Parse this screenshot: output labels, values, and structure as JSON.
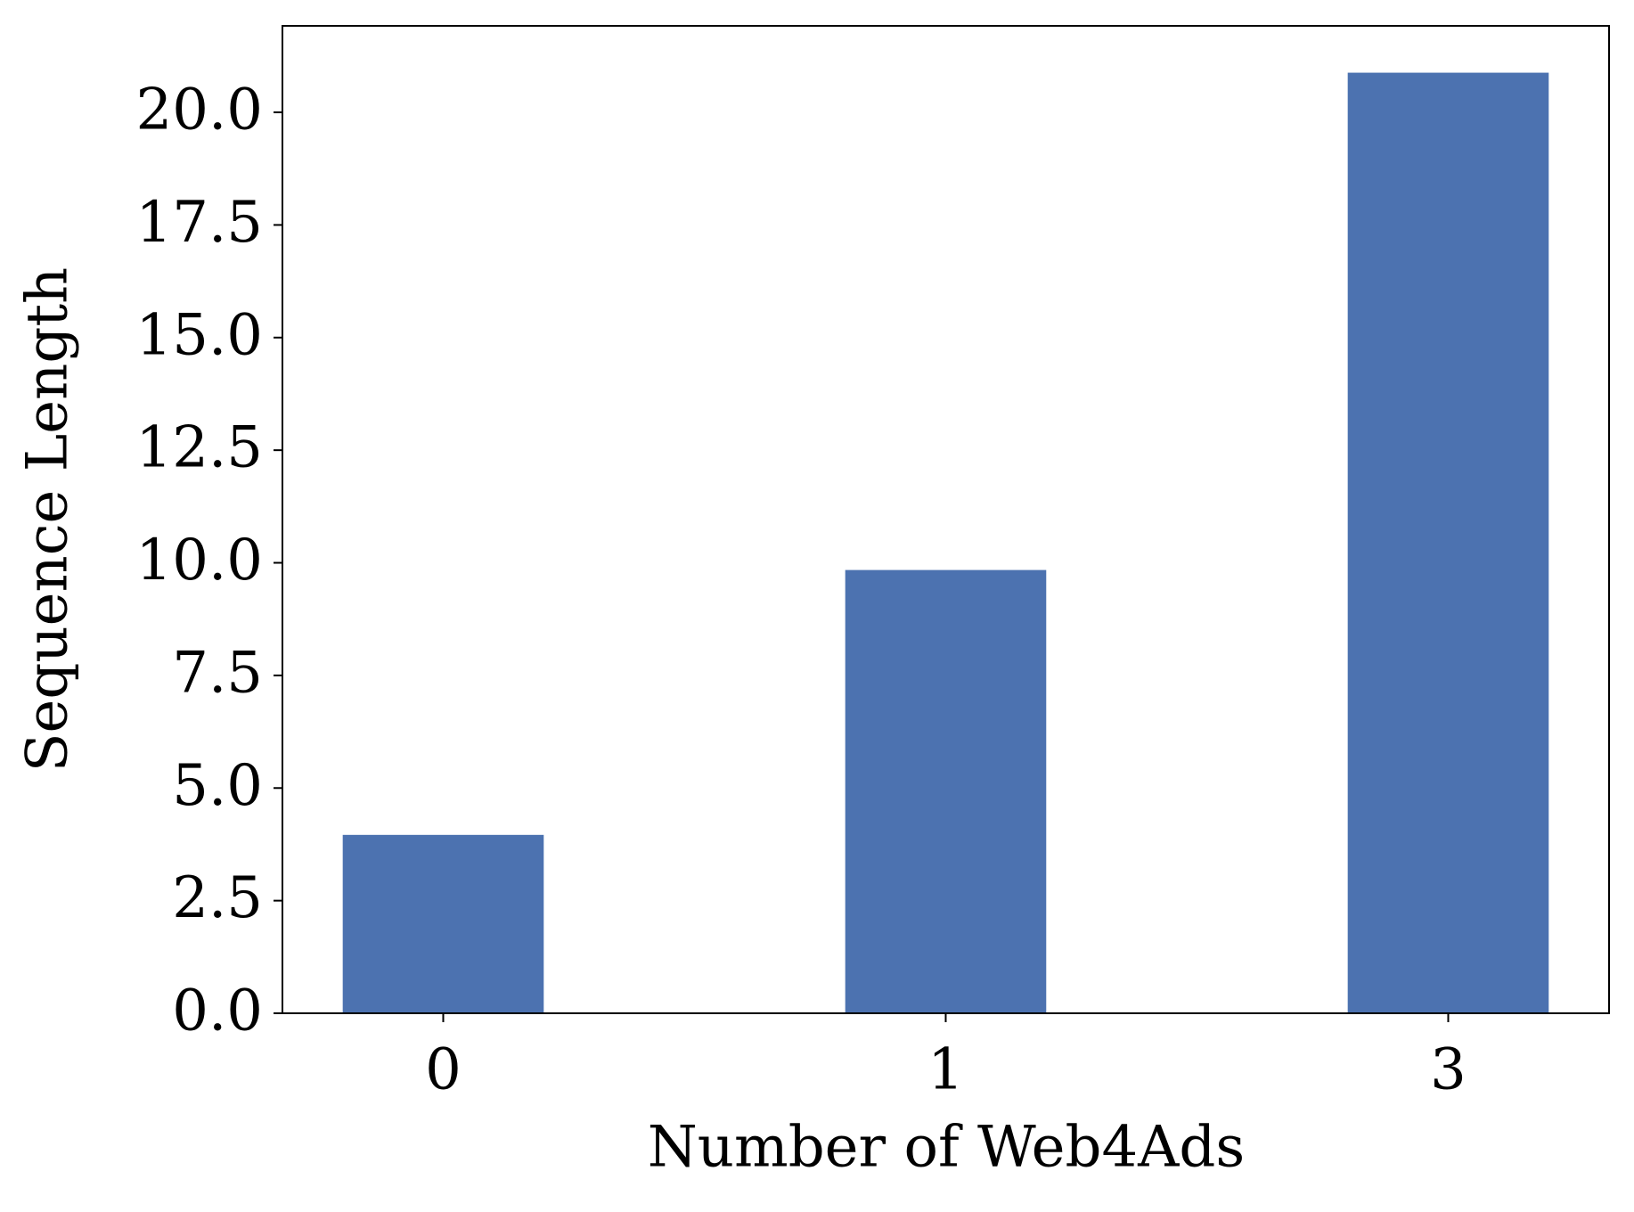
{
  "chart_data": {
    "type": "bar",
    "x_label": "Number of Web4Ads",
    "y_label": "Sequence Length",
    "categories": [
      "0",
      "1",
      "3"
    ],
    "values": [
      3.96,
      9.84,
      20.88
    ],
    "color": "#4c72b0",
    "ylim": [
      0,
      21.92
    ],
    "yticks": [
      {
        "value": 0,
        "label": "0.0"
      },
      2.5,
      {
        "value": 5,
        "label": "5.0"
      },
      7.5,
      {
        "value": 10,
        "label": "10.0"
      },
      12.5,
      {
        "value": 15,
        "label": "15.0"
      },
      17.5,
      {
        "value": 20,
        "label": "20.0"
      }
    ],
    "grid": false
  }
}
